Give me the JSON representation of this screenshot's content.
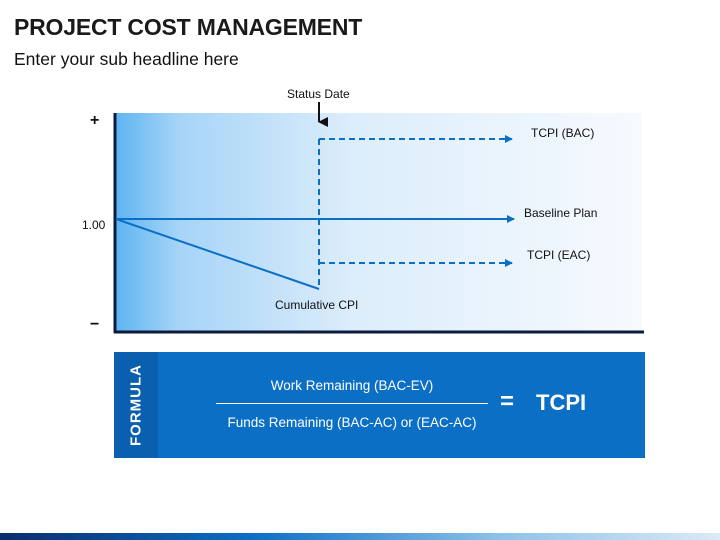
{
  "title": "PROJECT COST MANAGEMENT",
  "subtitle": "Enter your sub headline here",
  "diagram": {
    "status_date_label": "Status Date",
    "y_plus": "+",
    "y_minus": "−",
    "y_value_label": "1.00",
    "lines": {
      "tcpi_bac": "TCPI (BAC)",
      "baseline_plan": "Baseline Plan",
      "tcpi_eac": "TCPI (EAC)",
      "cumulative_cpi": "Cumulative CPI"
    }
  },
  "formula": {
    "tab_label": "FORMULA",
    "numerator": "Work Remaining (BAC-EV)",
    "denominator": "Funds Remaining (BAC-AC) or (EAC-AC)",
    "equals": "=",
    "result": "TCPI"
  },
  "colors": {
    "accent": "#0b6fc6",
    "accent_dark": "#0a5fae",
    "axis": "#0d1b3e"
  }
}
